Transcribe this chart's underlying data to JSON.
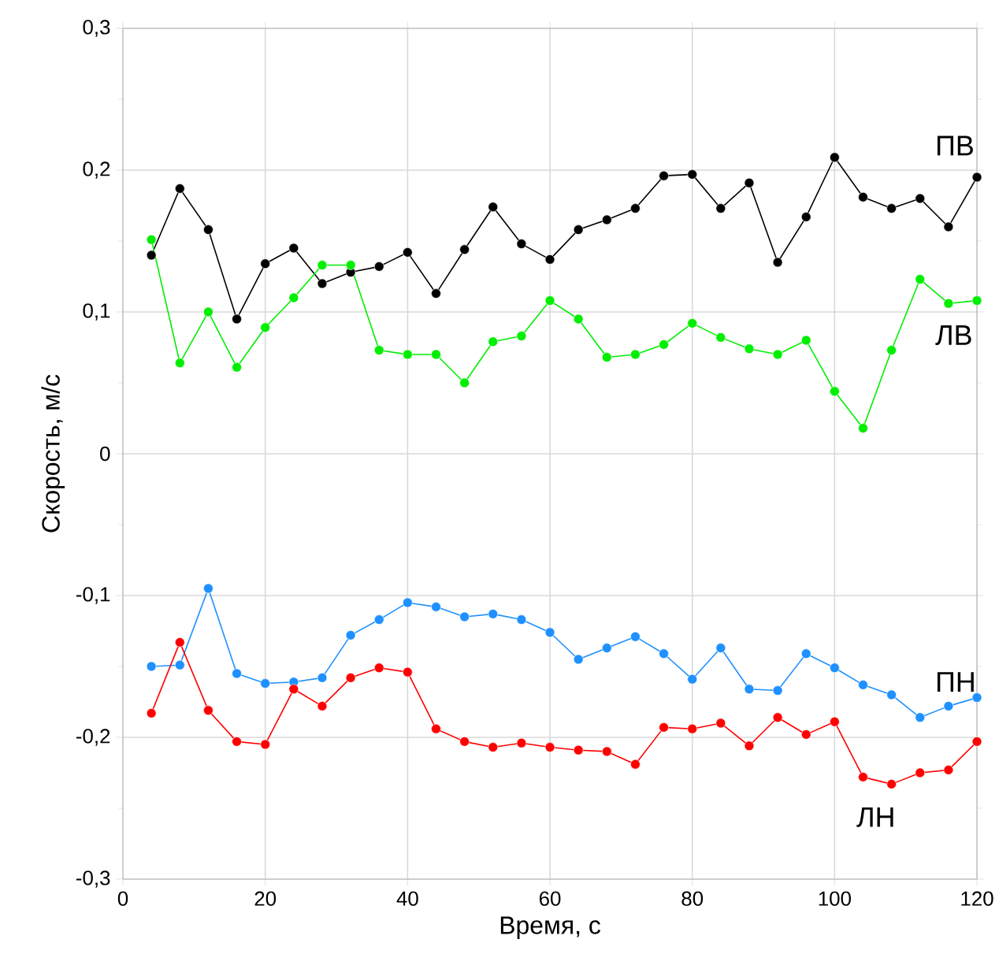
{
  "chart_data": {
    "type": "line",
    "xlabel": "Время, с",
    "ylabel": "Скорость, м/с",
    "x": [
      4,
      8,
      12,
      16,
      20,
      24,
      28,
      32,
      36,
      40,
      44,
      48,
      52,
      56,
      60,
      64,
      68,
      72,
      76,
      80,
      84,
      88,
      92,
      96,
      100,
      104,
      108,
      112,
      116,
      120
    ],
    "series": [
      {
        "name": "ПВ",
        "color": "#000000",
        "values": [
          0.14,
          0.187,
          0.158,
          0.095,
          0.134,
          0.145,
          0.12,
          0.128,
          0.132,
          0.142,
          0.113,
          0.144,
          0.174,
          0.148,
          0.137,
          0.158,
          0.165,
          0.173,
          0.196,
          0.197,
          0.173,
          0.191,
          0.135,
          0.167,
          0.209,
          0.181,
          0.173,
          0.18,
          0.16,
          0.195
        ]
      },
      {
        "name": "ЛВ",
        "color": "#00ee00",
        "values": [
          0.151,
          0.064,
          0.1,
          0.061,
          0.089,
          0.11,
          0.133,
          0.133,
          0.073,
          0.07,
          0.07,
          0.05,
          0.079,
          0.083,
          0.108,
          0.095,
          0.068,
          0.07,
          0.077,
          0.092,
          0.082,
          0.074,
          0.07,
          0.08,
          0.044,
          0.018,
          0.073,
          0.123,
          0.106,
          0.108
        ]
      },
      {
        "name": "ПН",
        "color": "#1e90ff",
        "values": [
          -0.15,
          -0.149,
          -0.095,
          -0.155,
          -0.162,
          -0.161,
          -0.158,
          -0.128,
          -0.117,
          -0.105,
          -0.108,
          -0.115,
          -0.113,
          -0.117,
          -0.126,
          -0.145,
          -0.137,
          -0.129,
          -0.141,
          -0.159,
          -0.137,
          -0.166,
          -0.167,
          -0.141,
          -0.151,
          -0.163,
          -0.17,
          -0.186,
          -0.178,
          -0.172
        ]
      },
      {
        "name": "ЛН",
        "color": "#ff0000",
        "values": [
          -0.183,
          -0.133,
          -0.181,
          -0.203,
          -0.205,
          -0.166,
          -0.178,
          -0.158,
          -0.151,
          -0.154,
          -0.194,
          -0.203,
          -0.207,
          -0.204,
          -0.207,
          -0.209,
          -0.21,
          -0.219,
          -0.193,
          -0.194,
          -0.19,
          -0.206,
          -0.186,
          -0.198,
          -0.189,
          -0.228,
          -0.233,
          -0.225,
          -0.223,
          -0.203
        ]
      }
    ],
    "xlim": [
      0,
      120
    ],
    "ylim": [
      -0.3,
      0.3
    ],
    "xticks": [
      0,
      20,
      40,
      60,
      80,
      100,
      120
    ],
    "yticks": [
      {
        "value": -0.3,
        "label": "-0,3"
      },
      {
        "value": -0.2,
        "label": "-0,2"
      },
      {
        "value": -0.1,
        "label": "-0,1"
      },
      {
        "value": 0,
        "label": "0"
      },
      {
        "value": 0.1,
        "label": "0,1"
      },
      {
        "value": 0.2,
        "label": "0,2"
      },
      {
        "value": 0.3,
        "label": "0,3"
      }
    ],
    "grid": true,
    "legend": false,
    "marker": "circle",
    "line_style": "solid"
  }
}
